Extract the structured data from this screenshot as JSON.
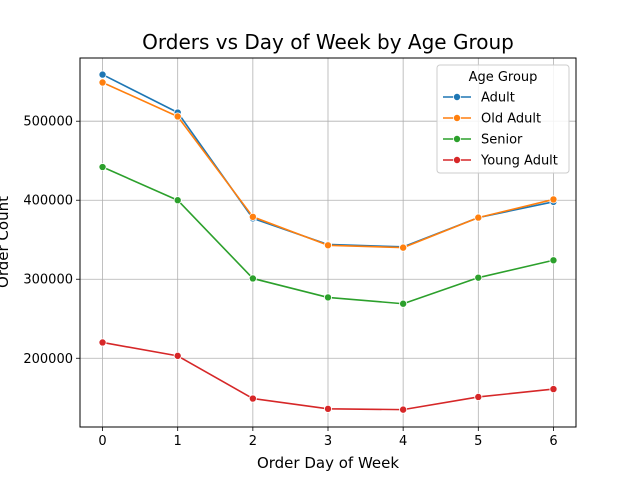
{
  "chart_data": {
    "type": "line",
    "title": "Orders vs Day of Week by Age Group",
    "xlabel": "Order Day of Week",
    "ylabel": "Order Count",
    "x": [
      0,
      1,
      2,
      3,
      4,
      5,
      6
    ],
    "xlim": [
      -0.3,
      6.3
    ],
    "ylim": [
      113000,
      580000
    ],
    "yticks": [
      200000,
      300000,
      400000,
      500000
    ],
    "grid": true,
    "legend": {
      "title": "Age Group",
      "placement": "top-right"
    },
    "series": [
      {
        "name": "Adult",
        "color": "#1f77b4",
        "marker": "circle",
        "values": [
          559000,
          511000,
          377000,
          344000,
          341000,
          378000,
          398000
        ]
      },
      {
        "name": "Old Adult",
        "color": "#ff7f0e",
        "marker": "circle",
        "values": [
          549000,
          506000,
          379000,
          343000,
          340000,
          378000,
          401000
        ]
      },
      {
        "name": "Senior",
        "color": "#2ca02c",
        "marker": "circle",
        "values": [
          442000,
          400000,
          301000,
          277000,
          269000,
          302000,
          324000
        ]
      },
      {
        "name": "Young Adult",
        "color": "#d62728",
        "marker": "circle",
        "values": [
          220000,
          203000,
          149000,
          136000,
          135000,
          151000,
          161000
        ]
      }
    ]
  }
}
